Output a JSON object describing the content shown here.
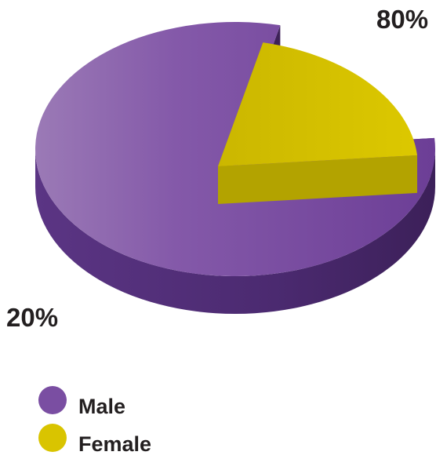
{
  "chart_data": {
    "type": "pie",
    "style": "3d-exploded",
    "categories": [
      "Male",
      "Female"
    ],
    "values": [
      80,
      20
    ],
    "unit": "%",
    "data_labels": [
      "80%",
      "20%"
    ],
    "colors": {
      "Male": "#7a4ea2",
      "Female": "#d9c400"
    },
    "legend": {
      "placement": "bottom-left",
      "entries": [
        "Male",
        "Female"
      ]
    },
    "title": "",
    "exploded_slice": "Female"
  }
}
